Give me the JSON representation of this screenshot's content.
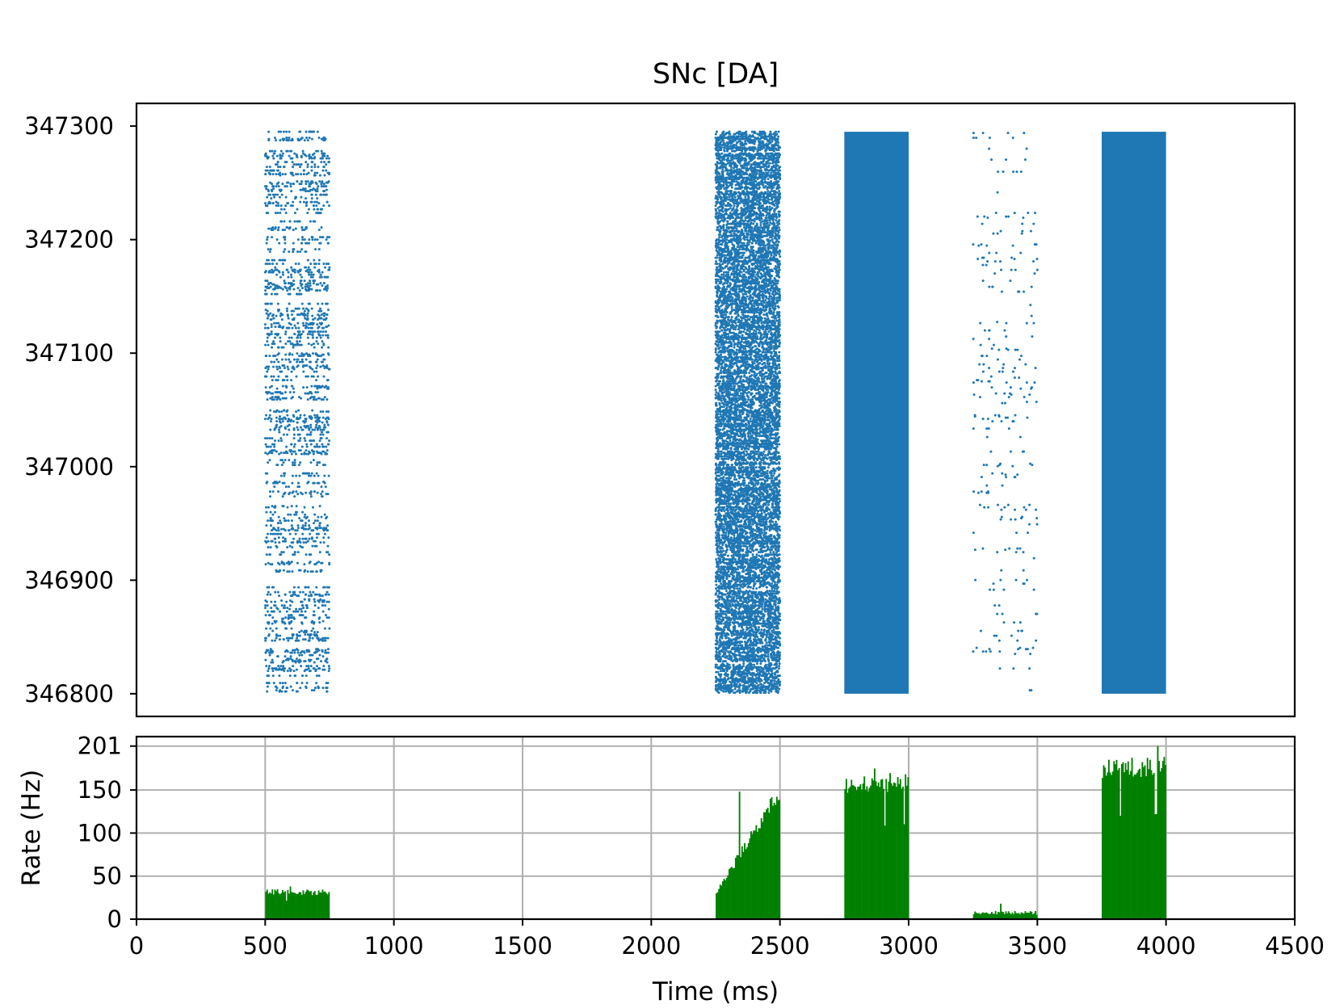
{
  "chart_data": [
    {
      "type": "scatter",
      "title": "SNc [DA]",
      "xlabel": "",
      "ylabel": "",
      "xlim": [
        0,
        4500
      ],
      "ylim": [
        346780,
        347320
      ],
      "y_ticks": [
        346800,
        346900,
        347000,
        347100,
        347200,
        347300
      ],
      "y_tick_labels": [
        "346800",
        "346900",
        "347000",
        "347100",
        "347200",
        "347300"
      ],
      "grid": false,
      "color": "#1f77b4",
      "neuron_range": [
        346800,
        347295
      ],
      "epochs": [
        {
          "t_start": 500,
          "t_end": 750,
          "density": 0.22
        },
        {
          "t_start": 2250,
          "t_end": 2500,
          "density": 0.55
        },
        {
          "t_start": 2750,
          "t_end": 3000,
          "density": 1.0
        },
        {
          "t_start": 3250,
          "t_end": 3500,
          "density": 0.06
        },
        {
          "t_start": 3750,
          "t_end": 4000,
          "density": 1.0
        }
      ]
    },
    {
      "type": "bar",
      "xlabel": "Time (ms)",
      "ylabel": "Rate (Hz)",
      "xlim": [
        0,
        4500
      ],
      "ylim": [
        0,
        212
      ],
      "x_ticks": [
        0,
        500,
        1000,
        1500,
        2000,
        2500,
        3000,
        3500,
        4000,
        4500
      ],
      "x_tick_labels": [
        "0",
        "500",
        "1000",
        "1500",
        "2000",
        "2500",
        "3000",
        "3500",
        "4000",
        "4500"
      ],
      "y_ticks": [
        0,
        50,
        100,
        150,
        201
      ],
      "y_tick_labels": [
        "0",
        "50",
        "100",
        "150",
        "201"
      ],
      "grid": true,
      "color": "#008000",
      "bin_width_ms": 5,
      "epochs": [
        {
          "t_start": 500,
          "t_end": 750,
          "rate_start": 31,
          "rate_end": 30,
          "peak": 38
        },
        {
          "t_start": 2250,
          "t_end": 2500,
          "rate_start": 30,
          "rate_end": 145,
          "peak": 148
        },
        {
          "t_start": 2750,
          "t_end": 3000,
          "rate_start": 150,
          "rate_end": 158,
          "peak": 175
        },
        {
          "t_start": 3250,
          "t_end": 3500,
          "rate_start": 7,
          "rate_end": 7,
          "peak": 18
        },
        {
          "t_start": 3750,
          "t_end": 4000,
          "rate_start": 170,
          "rate_end": 175,
          "peak": 201
        }
      ]
    }
  ]
}
